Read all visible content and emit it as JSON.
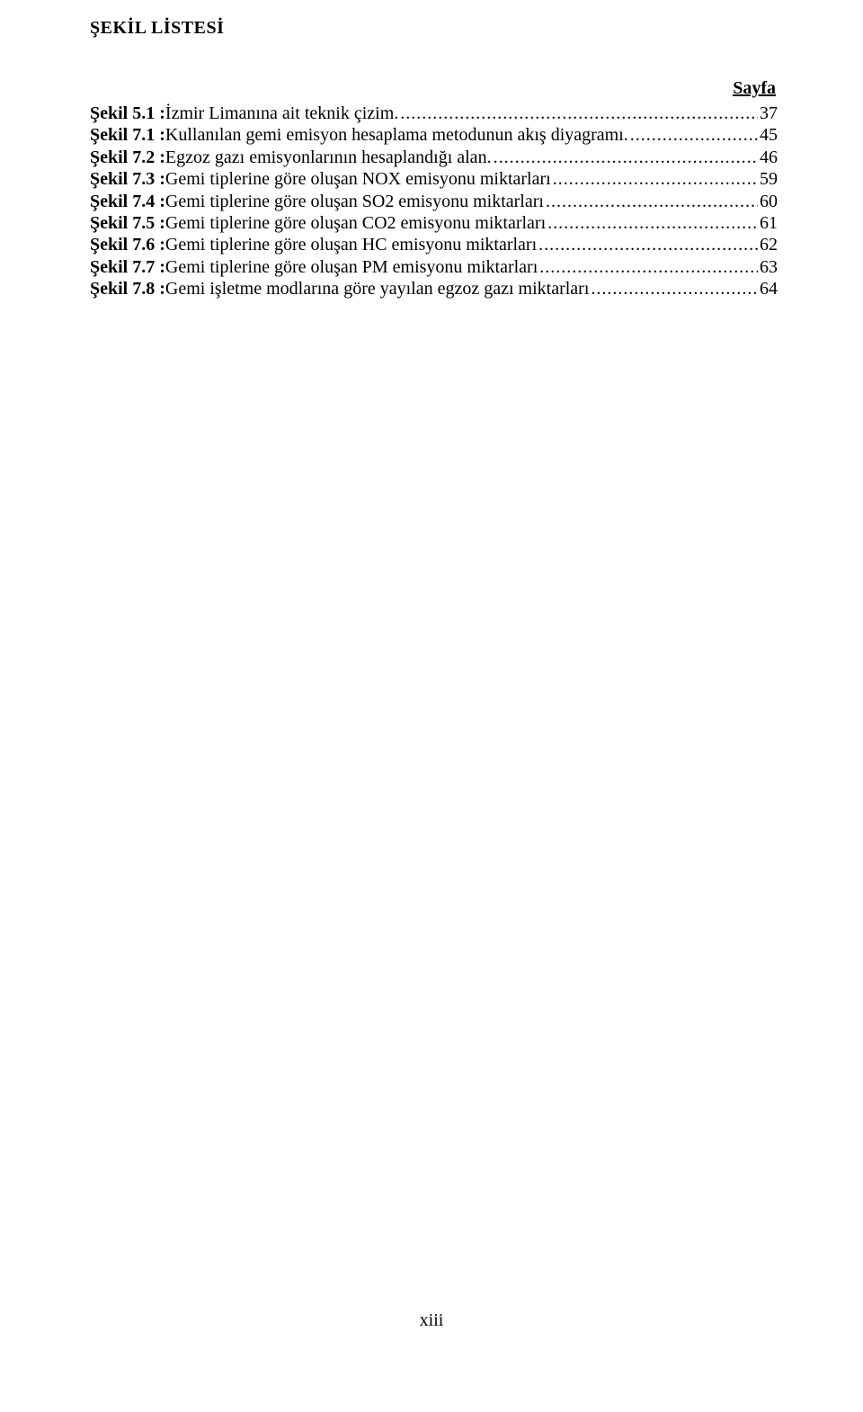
{
  "title": "ŞEKİL LİSTESİ",
  "page_header": "Sayfa",
  "entries": [
    {
      "label": "Şekil 5.1  : ",
      "desc": "İzmir Limanına ait teknik çizim.",
      "page": "37"
    },
    {
      "label": "Şekil 7.1  : ",
      "desc": "Kullanılan gemi emisyon hesaplama metodunun akış diyagramı.",
      "page": "45"
    },
    {
      "label": "Şekil 7.2  : ",
      "desc": "Egzoz gazı emisyonlarının hesaplandığı alan.",
      "page": "46"
    },
    {
      "label": "Şekil 7.3  : ",
      "desc": "Gemi tiplerine göre oluşan NOX emisyonu miktarları",
      "page": "59"
    },
    {
      "label": "Şekil 7.4  : ",
      "desc": "Gemi tiplerine göre oluşan SO2 emisyonu miktarları",
      "page": "60"
    },
    {
      "label": "Şekil 7.5  : ",
      "desc": "Gemi tiplerine göre oluşan CO2 emisyonu miktarları",
      "page": "61"
    },
    {
      "label": "Şekil 7.6  : ",
      "desc": "Gemi tiplerine göre oluşan HC emisyonu miktarları",
      "page": "62"
    },
    {
      "label": "Şekil 7.7  : ",
      "desc": "Gemi tiplerine göre oluşan PM emisyonu miktarları",
      "page": "63"
    },
    {
      "label": "Şekil 7.8  : ",
      "desc": "Gemi işletme modlarına göre yayılan egzoz gazı miktarları",
      "page": "64"
    }
  ],
  "footer": "xiii"
}
